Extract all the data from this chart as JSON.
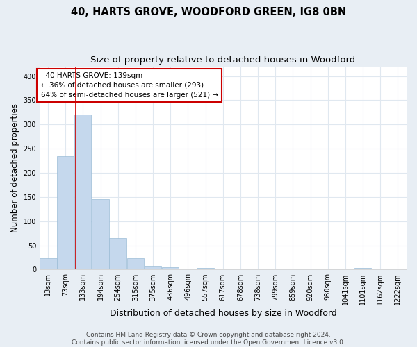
{
  "title": "40, HARTS GROVE, WOODFORD GREEN, IG8 0BN",
  "subtitle": "Size of property relative to detached houses in Woodford",
  "xlabel": "Distribution of detached houses by size in Woodford",
  "ylabel": "Number of detached properties",
  "footer_line1": "Contains HM Land Registry data © Crown copyright and database right 2024.",
  "footer_line2": "Contains public sector information licensed under the Open Government Licence v3.0.",
  "bar_color": "#c5d8ed",
  "bar_edge_color": "#9bbcd6",
  "property_line_color": "#cc0000",
  "property_sqm": 139,
  "annotation_text": "  40 HARTS GROVE: 139sqm\n← 36% of detached houses are smaller (293)\n64% of semi-detached houses are larger (521) →",
  "annotation_box_color": "#ffffff",
  "annotation_border_color": "#cc0000",
  "bins": [
    13,
    73,
    133,
    194,
    254,
    315,
    375,
    436,
    496,
    557,
    617,
    678,
    738,
    799,
    859,
    920,
    980,
    1041,
    1101,
    1162,
    1222
  ],
  "bin_labels": [
    "13sqm",
    "73sqm",
    "133sqm",
    "194sqm",
    "254sqm",
    "315sqm",
    "375sqm",
    "436sqm",
    "496sqm",
    "557sqm",
    "617sqm",
    "678sqm",
    "738sqm",
    "799sqm",
    "859sqm",
    "920sqm",
    "980sqm",
    "1041sqm",
    "1101sqm",
    "1162sqm",
    "1222sqm"
  ],
  "counts": [
    24,
    235,
    320,
    146,
    65,
    23,
    7,
    5,
    0,
    4,
    0,
    0,
    0,
    0,
    0,
    0,
    0,
    0,
    3,
    0,
    0
  ],
  "ylim": [
    0,
    420
  ],
  "yticks": [
    0,
    50,
    100,
    150,
    200,
    250,
    300,
    350,
    400
  ],
  "background_color": "#e8eef4",
  "plot_bg_color": "#ffffff",
  "grid_color": "#e0e8f0",
  "title_fontsize": 10.5,
  "subtitle_fontsize": 9.5,
  "axis_label_fontsize": 8.5,
  "tick_fontsize": 7,
  "footer_fontsize": 6.5
}
